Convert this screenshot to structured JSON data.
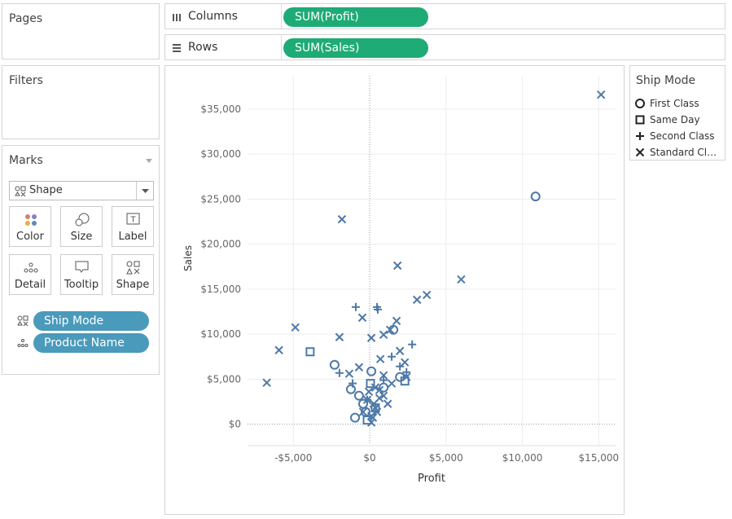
{
  "pages": {
    "title": "Pages"
  },
  "shelves": {
    "columns": {
      "label": "Columns",
      "pill": "SUM(Profit)"
    },
    "rows": {
      "label": "Rows",
      "pill": "SUM(Sales)"
    }
  },
  "filters": {
    "title": "Filters"
  },
  "marks": {
    "title": "Marks",
    "mark_type": "Shape",
    "buttons": [
      "Color",
      "Size",
      "Label",
      "Detail",
      "Tooltip",
      "Shape"
    ],
    "pills": [
      "Ship Mode",
      "Product Name"
    ]
  },
  "legend": {
    "title": "Ship Mode"
  },
  "chart_data": {
    "type": "scatter",
    "x_label": "Profit",
    "y_label": "Sales",
    "xlim": [
      -8000,
      16100
    ],
    "ylim": [
      -2300,
      38700
    ],
    "xticks": [
      {
        "value": -5000,
        "label": "-$5,000"
      },
      {
        "value": 0,
        "label": "$0"
      },
      {
        "value": 5000,
        "label": "$5,000"
      },
      {
        "value": 10000,
        "label": "$10,000"
      },
      {
        "value": 15000,
        "label": "$15,000"
      }
    ],
    "yticks": [
      {
        "value": 0,
        "label": "$0"
      },
      {
        "value": 5000,
        "label": "$5,000"
      },
      {
        "value": 10000,
        "label": "$10,000"
      },
      {
        "value": 15000,
        "label": "$15,000"
      },
      {
        "value": 20000,
        "label": "$20,000"
      },
      {
        "value": 25000,
        "label": "$25,000"
      },
      {
        "value": 30000,
        "label": "$30,000"
      },
      {
        "value": 35000,
        "label": "$35,000"
      }
    ],
    "grid": true,
    "series": [
      {
        "name": "First Class",
        "shape": "circle",
        "color": "#4e79a7",
        "x": [
          10860,
          1550,
          -2300,
          -1230,
          -960,
          -430,
          910,
          1980,
          110,
          -270,
          -700
        ],
        "values": [
          25290,
          10480,
          6590,
          3880,
          720,
          2260,
          4070,
          5240,
          5870,
          1360,
          3160
        ]
      },
      {
        "name": "Same Day",
        "shape": "square",
        "color": "#4e79a7",
        "x": [
          -3900,
          2300,
          50,
          370,
          -160
        ],
        "values": [
          8040,
          4790,
          4520,
          1810,
          450
        ]
      },
      {
        "name": "Second Class",
        "shape": "plus",
        "color": "#4e79a7",
        "x": [
          -910,
          480,
          530,
          2780,
          1440,
          -1980,
          -1120,
          1980,
          2410,
          910,
          -160
        ],
        "values": [
          13010,
          13010,
          12740,
          8850,
          7500,
          5690,
          4520,
          6410,
          5780,
          4880,
          2710
        ]
      },
      {
        "name": "Standard Class",
        "shape": "cross",
        "color": "#4e79a7",
        "x": [
          15150,
          -1820,
          5990,
          1820,
          3740,
          3100,
          -4870,
          -5940,
          -6740,
          -1980,
          -480,
          110,
          1760,
          1340,
          910,
          1980,
          2300,
          2410,
          700,
          -700,
          -1340,
          910,
          1440,
          640,
          -160,
          370,
          110,
          110,
          210,
          480,
          270,
          640,
          -50,
          910,
          1180,
          -430,
          370
        ],
        "values": [
          36600,
          22760,
          16080,
          17610,
          14360,
          13820,
          10750,
          8220,
          4610,
          9670,
          11830,
          9580,
          11470,
          10480,
          9940,
          8130,
          6870,
          5240,
          7230,
          6320,
          5600,
          5420,
          4520,
          3790,
          2710,
          1810,
          900,
          180,
          720,
          1360,
          2260,
          2890,
          3610,
          3160,
          2260,
          1360,
          4070
        ]
      }
    ]
  }
}
